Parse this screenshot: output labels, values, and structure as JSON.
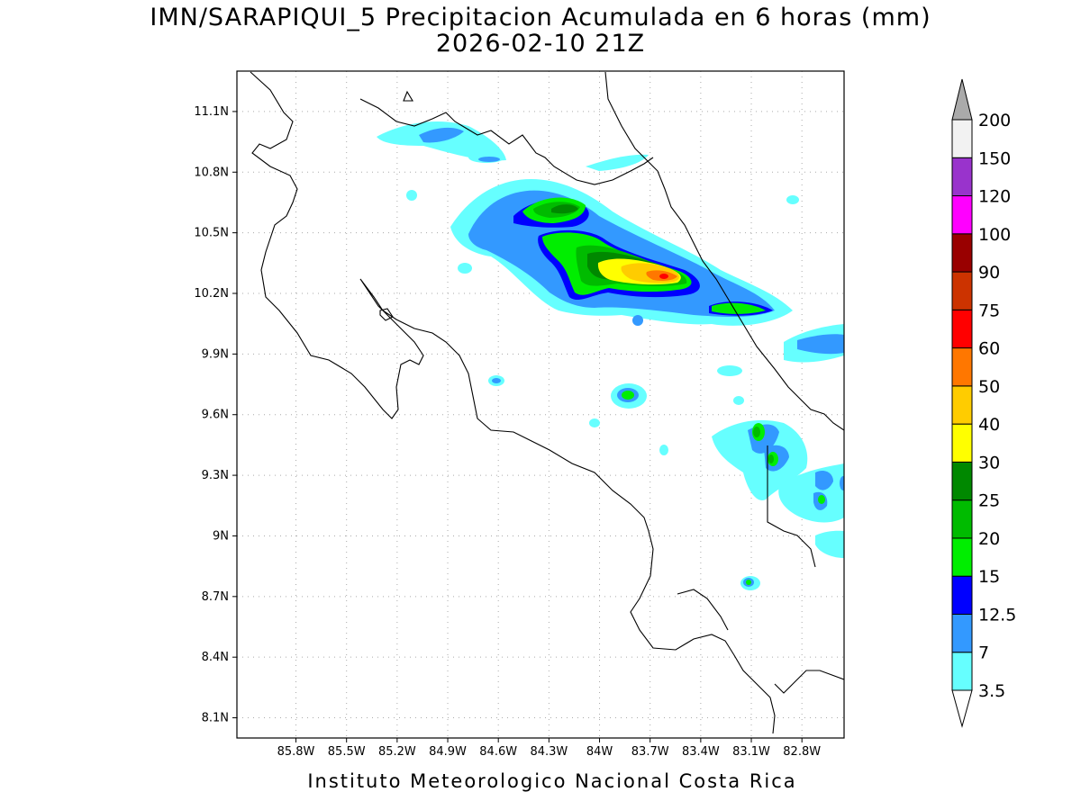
{
  "title": {
    "line1": "IMN/SARAPIQUI_5 Precipitacion Acumulada en 6 horas (mm)",
    "line2": "2026-02-10 21Z"
  },
  "footer": "Instituto Meteorologico Nacional Costa Rica",
  "map": {
    "lon_range": [
      -86.15,
      -82.55
    ],
    "lat_range": [
      8.0,
      11.3
    ],
    "lon_ticks": [
      "85.8W",
      "85.5W",
      "85.2W",
      "84.9W",
      "84.6W",
      "84.3W",
      "84W",
      "83.7W",
      "83.4W",
      "83.1W",
      "82.8W"
    ],
    "lat_ticks": [
      "11.1N",
      "10.8N",
      "10.5N",
      "10.2N",
      "9.9N",
      "9.6N",
      "9.3N",
      "9N",
      "8.7N",
      "8.4N",
      "8.1N"
    ],
    "grid": "dotted",
    "region": "Costa Rica"
  },
  "colorbar": {
    "labels": [
      "3.5",
      "7",
      "12.5",
      "15",
      "20",
      "25",
      "30",
      "40",
      "50",
      "60",
      "75",
      "90",
      "100",
      "120",
      "150",
      "200"
    ],
    "colors": [
      "#66ffff",
      "#3399ff",
      "#0000ff",
      "#00ee00",
      "#00bb00",
      "#008800",
      "#ffff00",
      "#ffcc00",
      "#ff7700",
      "#ff0000",
      "#cc3300",
      "#990000",
      "#ff00ff",
      "#9933cc",
      "#f2f2f2",
      "#aaaaaa"
    ],
    "units": "mm"
  },
  "colors": {
    "coastline": "#000000",
    "gridline": "#aaaaaa"
  }
}
